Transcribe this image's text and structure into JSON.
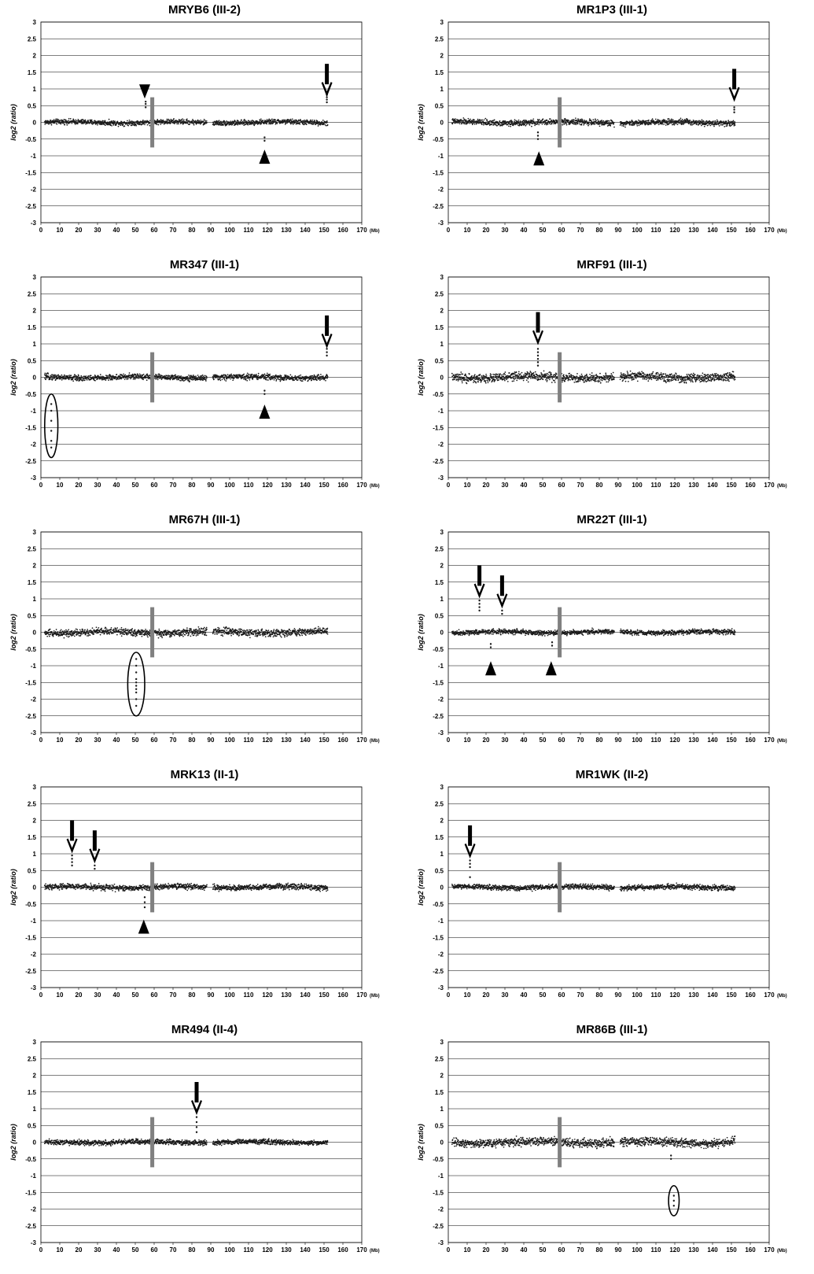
{
  "figure": {
    "background": "#ffffff",
    "point_color": "#1a1a1a",
    "centromere_color": "#808080",
    "grid_color": "#000000"
  },
  "chart_data": [
    {
      "type": "scatter",
      "title": "MRYB6 (III-2)",
      "ylabel": "log2 (ratio)",
      "x_unit": "(Mb)",
      "xlim": [
        0,
        170
      ],
      "ylim": [
        -3,
        3
      ],
      "x_ticks": [
        0,
        10,
        20,
        30,
        40,
        50,
        60,
        70,
        80,
        90,
        100,
        110,
        120,
        130,
        140,
        150,
        160,
        170
      ],
      "y_ticks": [
        3,
        2.5,
        2,
        1.5,
        1,
        0.5,
        0,
        -0.5,
        -1,
        -1.5,
        -2,
        -2.5,
        -3
      ],
      "grid": "horizontal",
      "baseline": {
        "x_start": 2,
        "x_end": 152,
        "gaps": [
          [
            58,
            60
          ],
          [
            88,
            91
          ]
        ],
        "spread": 0.07
      },
      "centromere_x": 59,
      "outliers": [
        {
          "x": 55.5,
          "y": [
            0.45,
            0.55,
            0.62
          ]
        },
        {
          "x": 118.5,
          "y": [
            -0.45,
            -0.55
          ]
        },
        {
          "x": 151.5,
          "y": [
            0.6,
            0.68,
            0.75,
            0.82
          ]
        }
      ],
      "markers": [
        {
          "type": "arrowhead-down",
          "x": 55,
          "y": 0.9
        },
        {
          "type": "arrowhead-up",
          "x": 118.5,
          "y": -1.05
        },
        {
          "type": "arrow-down",
          "x": 151.5,
          "y": 1.75
        }
      ],
      "ellipses": []
    },
    {
      "type": "scatter",
      "title": "MR1P3 (III-1)",
      "ylabel": "log2 (ratio)",
      "x_unit": "(Mb)",
      "xlim": [
        0,
        170
      ],
      "ylim": [
        -3,
        3
      ],
      "x_ticks": [
        0,
        10,
        20,
        30,
        40,
        50,
        60,
        70,
        80,
        90,
        100,
        110,
        120,
        130,
        140,
        150,
        160,
        170
      ],
      "y_ticks": [
        3,
        2.5,
        2,
        1.5,
        1,
        0.5,
        0,
        -0.5,
        -1,
        -1.5,
        -2,
        -2.5,
        -3
      ],
      "grid": "horizontal",
      "baseline": {
        "x_start": 2,
        "x_end": 152,
        "gaps": [
          [
            58,
            60
          ],
          [
            88,
            91
          ]
        ],
        "spread": 0.08
      },
      "centromere_x": 59,
      "outliers": [
        {
          "x": 47.5,
          "y": [
            -0.3,
            -0.4,
            -0.5
          ]
        },
        {
          "x": 151.5,
          "y": [
            0.3,
            0.38,
            0.45
          ]
        }
      ],
      "markers": [
        {
          "type": "arrowhead-up",
          "x": 48,
          "y": -1.1
        },
        {
          "type": "arrow-down",
          "x": 151.5,
          "y": 1.6
        }
      ],
      "ellipses": []
    },
    {
      "type": "scatter",
      "title": "MR347 (III-1)",
      "ylabel": "log2 (ratio)",
      "x_unit": "(Mb)",
      "xlim": [
        0,
        170
      ],
      "ylim": [
        -3,
        3
      ],
      "x_ticks": [
        0,
        10,
        20,
        30,
        40,
        50,
        60,
        70,
        80,
        90,
        100,
        110,
        120,
        130,
        140,
        150,
        160,
        170
      ],
      "y_ticks": [
        3,
        2.5,
        2,
        1.5,
        1,
        0.5,
        0,
        -0.5,
        -1,
        -1.5,
        -2,
        -2.5,
        -3
      ],
      "grid": "horizontal",
      "baseline": {
        "x_start": 2,
        "x_end": 152,
        "gaps": [
          [
            58,
            60
          ],
          [
            88,
            91
          ]
        ],
        "spread": 0.08
      },
      "centromere_x": 59,
      "outliers": [
        {
          "x": 5.5,
          "y": [
            -0.8,
            -1.0,
            -1.3,
            -1.6,
            -1.9,
            -2.1
          ]
        },
        {
          "x": 118.5,
          "y": [
            -0.4,
            -0.5
          ]
        },
        {
          "x": 151.5,
          "y": [
            0.65,
            0.75,
            0.85
          ]
        }
      ],
      "markers": [
        {
          "type": "arrowhead-up",
          "x": 118.5,
          "y": -1.05
        },
        {
          "type": "arrow-down",
          "x": 151.5,
          "y": 1.85
        }
      ],
      "ellipses": [
        {
          "cx": 5.5,
          "cy": -1.45,
          "rx": 3.5,
          "ry": 0.95
        }
      ]
    },
    {
      "type": "scatter",
      "title": "MRF91 (III-1)",
      "ylabel": "log2 (ratio)",
      "x_unit": "(Mb)",
      "xlim": [
        0,
        170
      ],
      "ylim": [
        -3,
        3
      ],
      "x_ticks": [
        0,
        10,
        20,
        30,
        40,
        50,
        60,
        70,
        80,
        90,
        100,
        110,
        120,
        130,
        140,
        150,
        160,
        170
      ],
      "y_ticks": [
        3,
        2.5,
        2,
        1.5,
        1,
        0.5,
        0,
        -0.5,
        -1,
        -1.5,
        -2,
        -2.5,
        -3
      ],
      "grid": "horizontal",
      "baseline": {
        "x_start": 2,
        "x_end": 152,
        "gaps": [
          [
            58,
            60
          ],
          [
            88,
            91
          ]
        ],
        "spread": 0.12
      },
      "centromere_x": 59,
      "outliers": [
        {
          "x": 47.5,
          "y": [
            0.35,
            0.45,
            0.55,
            0.65,
            0.75,
            0.85
          ]
        }
      ],
      "markers": [
        {
          "type": "arrow-down",
          "x": 47.5,
          "y": 1.95
        }
      ],
      "ellipses": []
    },
    {
      "type": "scatter",
      "title": "MR67H (III-1)",
      "ylabel": "log2 (ratio)",
      "x_unit": "(Mb)",
      "xlim": [
        0,
        170
      ],
      "ylim": [
        -3,
        3
      ],
      "x_ticks": [
        0,
        10,
        20,
        30,
        40,
        50,
        60,
        70,
        80,
        90,
        100,
        110,
        120,
        130,
        140,
        150,
        160,
        170
      ],
      "y_ticks": [
        3,
        2.5,
        2,
        1.5,
        1,
        0.5,
        0,
        -0.5,
        -1,
        -1.5,
        -2,
        -2.5,
        -3
      ],
      "grid": "horizontal",
      "baseline": {
        "x_start": 2,
        "x_end": 152,
        "gaps": [
          [
            58,
            60
          ],
          [
            88,
            91
          ]
        ],
        "spread": 0.1
      },
      "centromere_x": 59,
      "outliers": [
        {
          "x": 50.5,
          "y": [
            -0.8,
            -1.0,
            -1.2,
            -1.4,
            -1.5,
            -1.6,
            -1.7,
            -1.8,
            -2.0,
            -2.2
          ]
        }
      ],
      "markers": [],
      "ellipses": [
        {
          "cx": 50.5,
          "cy": -1.55,
          "rx": 4.5,
          "ry": 0.95
        }
      ]
    },
    {
      "type": "scatter",
      "title": "MR22T (III-1)",
      "ylabel": "log2 (ratio)",
      "x_unit": "(Mb)",
      "xlim": [
        0,
        170
      ],
      "ylim": [
        -3,
        3
      ],
      "x_ticks": [
        0,
        10,
        20,
        30,
        40,
        50,
        60,
        70,
        80,
        90,
        100,
        110,
        120,
        130,
        140,
        150,
        160,
        170
      ],
      "y_ticks": [
        3,
        2.5,
        2,
        1.5,
        1,
        0.5,
        0,
        -0.5,
        -1,
        -1.5,
        -2,
        -2.5,
        -3
      ],
      "grid": "horizontal",
      "baseline": {
        "x_start": 2,
        "x_end": 152,
        "gaps": [
          [
            58,
            60
          ],
          [
            88,
            91
          ]
        ],
        "spread": 0.07
      },
      "centromere_x": 59,
      "outliers": [
        {
          "x": 16.5,
          "y": [
            0.65,
            0.75,
            0.85,
            0.95
          ]
        },
        {
          "x": 28.5,
          "y": [
            0.55,
            0.65
          ]
        },
        {
          "x": 22.5,
          "y": [
            -0.35,
            -0.45
          ]
        },
        {
          "x": 55,
          "y": [
            -0.3,
            -0.4
          ]
        }
      ],
      "markers": [
        {
          "type": "arrow-down",
          "x": 16.5,
          "y": 2.0
        },
        {
          "type": "arrow-down",
          "x": 28.5,
          "y": 1.7
        },
        {
          "type": "arrowhead-up",
          "x": 22.5,
          "y": -1.1
        },
        {
          "type": "arrowhead-up",
          "x": 54.5,
          "y": -1.1
        }
      ],
      "ellipses": []
    },
    {
      "type": "scatter",
      "title": "MRK13 (II-1)",
      "ylabel": "log2 (ratio)",
      "x_unit": "(Mb)",
      "xlim": [
        0,
        170
      ],
      "ylim": [
        -3,
        3
      ],
      "x_ticks": [
        0,
        10,
        20,
        30,
        40,
        50,
        60,
        70,
        80,
        90,
        100,
        110,
        120,
        130,
        140,
        150,
        160,
        170
      ],
      "y_ticks": [
        3,
        2.5,
        2,
        1.5,
        1,
        0.5,
        0,
        -0.5,
        -1,
        -1.5,
        -2,
        -2.5,
        -3
      ],
      "grid": "horizontal",
      "baseline": {
        "x_start": 2,
        "x_end": 152,
        "gaps": [
          [
            58,
            60
          ],
          [
            88,
            91
          ]
        ],
        "spread": 0.08
      },
      "centromere_x": 59,
      "outliers": [
        {
          "x": 16.5,
          "y": [
            0.65,
            0.75,
            0.85,
            0.95
          ]
        },
        {
          "x": 28.5,
          "y": [
            0.55,
            0.65
          ]
        },
        {
          "x": 55,
          "y": [
            -0.3,
            -0.45,
            -0.6
          ]
        }
      ],
      "markers": [
        {
          "type": "arrow-down",
          "x": 16.5,
          "y": 2.0
        },
        {
          "type": "arrow-down",
          "x": 28.5,
          "y": 1.7
        },
        {
          "type": "arrowhead-up",
          "x": 54.5,
          "y": -1.2
        }
      ],
      "ellipses": []
    },
    {
      "type": "scatter",
      "title": "MR1WK (II-2)",
      "ylabel": "log2 (ratio)",
      "x_unit": "(Mb)",
      "xlim": [
        0,
        170
      ],
      "ylim": [
        -3,
        3
      ],
      "x_ticks": [
        0,
        10,
        20,
        30,
        40,
        50,
        60,
        70,
        80,
        90,
        100,
        110,
        120,
        130,
        140,
        150,
        160,
        170
      ],
      "y_ticks": [
        3,
        2.5,
        2,
        1.5,
        1,
        0.5,
        0,
        -0.5,
        -1,
        -1.5,
        -2,
        -2.5,
        -3
      ],
      "grid": "horizontal",
      "baseline": {
        "x_start": 2,
        "x_end": 152,
        "gaps": [
          [
            58,
            60
          ],
          [
            88,
            91
          ]
        ],
        "spread": 0.07
      },
      "centromere_x": 59,
      "outliers": [
        {
          "x": 11.5,
          "y": [
            0.3,
            0.6,
            0.7,
            0.8
          ]
        }
      ],
      "markers": [
        {
          "type": "arrow-down",
          "x": 11.5,
          "y": 1.85
        }
      ],
      "ellipses": []
    },
    {
      "type": "scatter",
      "title": "MR494 (II-4)",
      "ylabel": "log2 (ratio)",
      "x_unit": "(Mb)",
      "xlim": [
        0,
        170
      ],
      "ylim": [
        -3,
        3
      ],
      "x_ticks": [
        0,
        10,
        20,
        30,
        40,
        50,
        60,
        70,
        80,
        90,
        100,
        110,
        120,
        130,
        140,
        150,
        160,
        170
      ],
      "y_ticks": [
        3,
        2.5,
        2,
        1.5,
        1,
        0.5,
        0,
        -0.5,
        -1,
        -1.5,
        -2,
        -2.5,
        -3
      ],
      "grid": "horizontal",
      "baseline": {
        "x_start": 2,
        "x_end": 152,
        "gaps": [
          [
            58,
            60
          ],
          [
            88,
            91
          ]
        ],
        "spread": 0.07
      },
      "centromere_x": 59,
      "outliers": [
        {
          "x": 82.5,
          "y": [
            0.3,
            0.45,
            0.6,
            0.75,
            0.9
          ]
        }
      ],
      "markers": [
        {
          "type": "arrow-down",
          "x": 82.5,
          "y": 1.8
        }
      ],
      "ellipses": []
    },
    {
      "type": "scatter",
      "title": "MR86B (III-1)",
      "ylabel": "log2 (ratio)",
      "x_unit": "(Mb)",
      "xlim": [
        0,
        170
      ],
      "ylim": [
        -3,
        3
      ],
      "x_ticks": [
        0,
        10,
        20,
        30,
        40,
        50,
        60,
        70,
        80,
        90,
        100,
        110,
        120,
        130,
        140,
        150,
        160,
        170
      ],
      "y_ticks": [
        3,
        2.5,
        2,
        1.5,
        1,
        0.5,
        0,
        -0.5,
        -1,
        -1.5,
        -2,
        -2.5,
        -3
      ],
      "grid": "horizontal",
      "baseline": {
        "x_start": 2,
        "x_end": 152,
        "gaps": [
          [
            58,
            60
          ],
          [
            88,
            91
          ]
        ],
        "spread": 0.12
      },
      "centromere_x": 59,
      "outliers": [
        {
          "x": 119.5,
          "y": [
            -1.6,
            -1.75,
            -1.9
          ]
        },
        {
          "x": 118,
          "y": [
            -0.4,
            -0.5
          ]
        }
      ],
      "markers": [],
      "ellipses": [
        {
          "cx": 119.5,
          "cy": -1.75,
          "rx": 2.8,
          "ry": 0.45
        }
      ]
    }
  ]
}
